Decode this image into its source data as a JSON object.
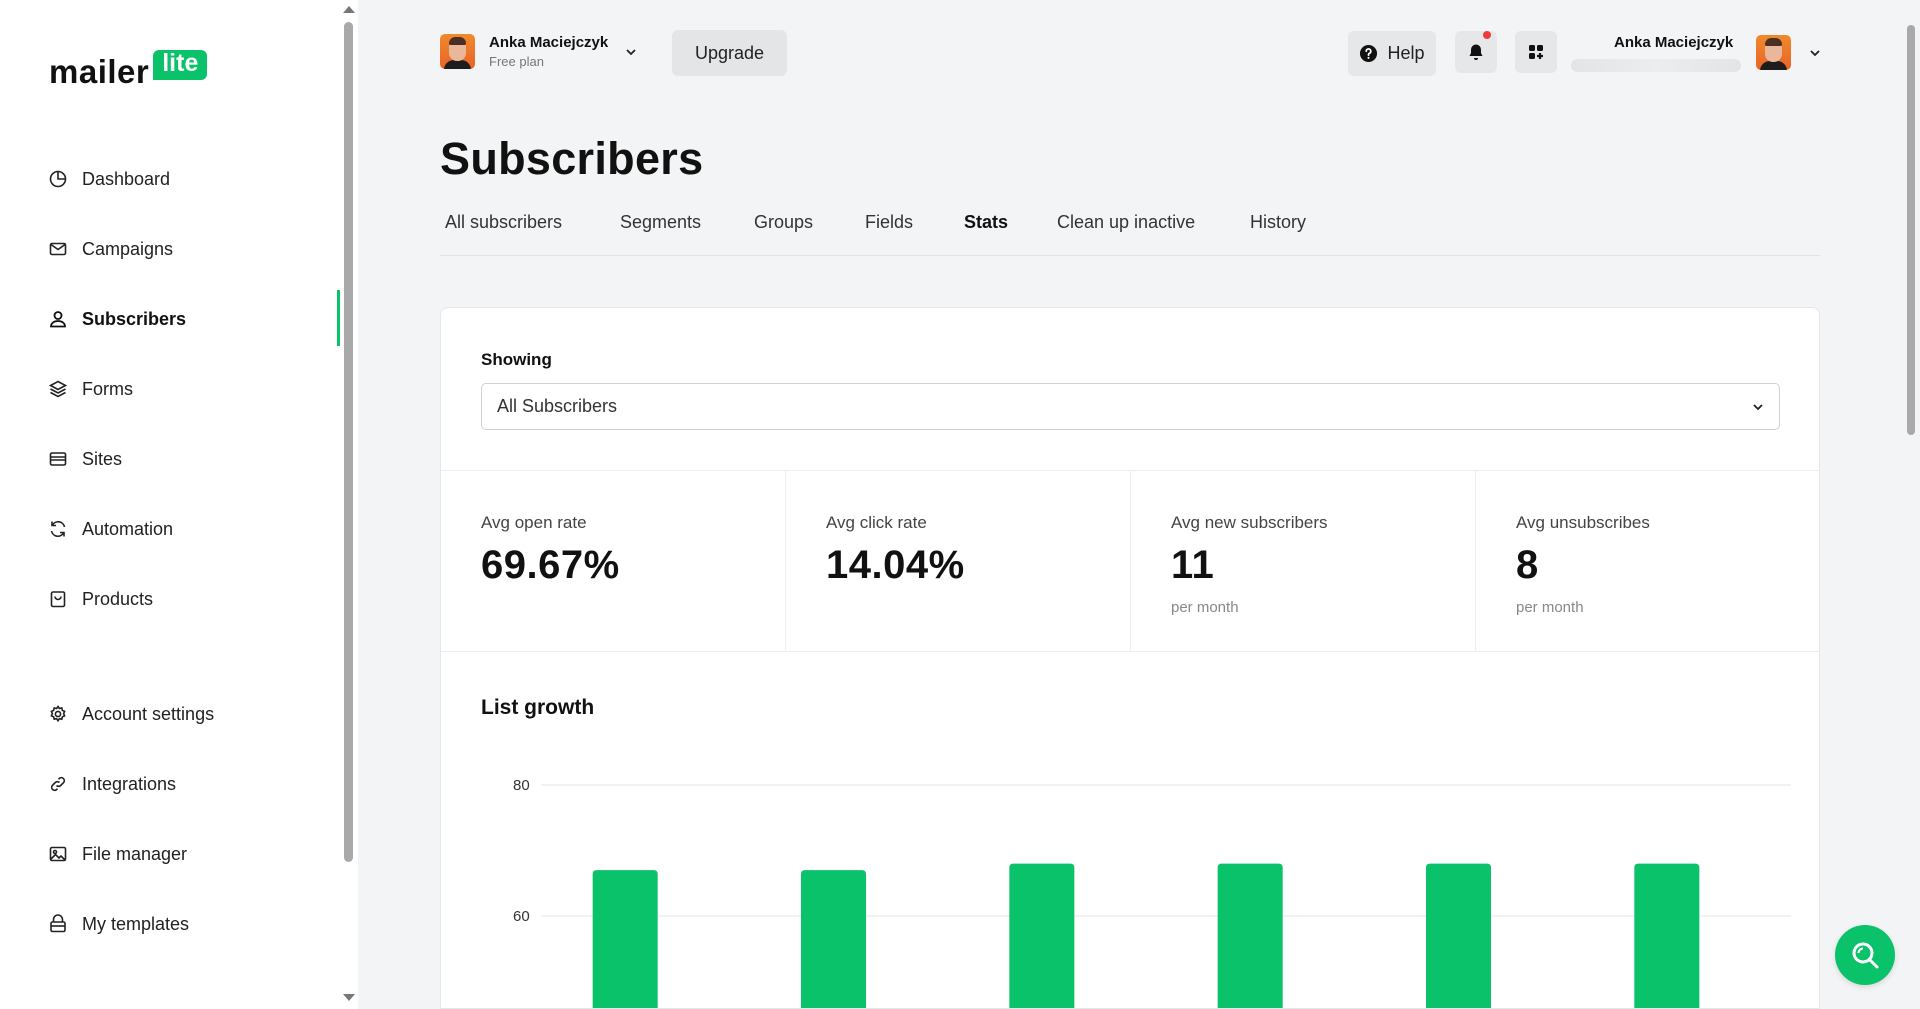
{
  "logo": {
    "word": "mailer",
    "badge": "lite"
  },
  "sidebar": {
    "items": [
      {
        "label": "Dashboard",
        "icon": "dashboard-icon"
      },
      {
        "label": "Campaigns",
        "icon": "mail-icon"
      },
      {
        "label": "Subscribers",
        "icon": "user-icon",
        "active": true
      },
      {
        "label": "Forms",
        "icon": "layers-icon"
      },
      {
        "label": "Sites",
        "icon": "browser-icon"
      },
      {
        "label": "Automation",
        "icon": "refresh-icon"
      },
      {
        "label": "Products",
        "icon": "shopping-bag-icon"
      },
      {
        "label": "Account settings",
        "icon": "gear-icon"
      },
      {
        "label": "Integrations",
        "icon": "link-icon"
      },
      {
        "label": "File manager",
        "icon": "image-icon"
      },
      {
        "label": "My templates",
        "icon": "template-icon"
      }
    ]
  },
  "header": {
    "account_name": "Anka Maciejczyk",
    "plan": "Free plan",
    "upgrade_label": "Upgrade",
    "help_label": "Help",
    "user_name": "Anka Maciejczyk"
  },
  "page": {
    "title": "Subscribers",
    "tabs": [
      {
        "label": "All subscribers"
      },
      {
        "label": "Segments"
      },
      {
        "label": "Groups"
      },
      {
        "label": "Fields"
      },
      {
        "label": "Stats",
        "active": true
      },
      {
        "label": "Clean up inactive"
      },
      {
        "label": "History"
      }
    ]
  },
  "stats_card": {
    "showing_label": "Showing",
    "selected": "All Subscribers",
    "stats": [
      {
        "label": "Avg open rate",
        "value": "69.67%",
        "sub": ""
      },
      {
        "label": "Avg click rate",
        "value": "14.04%",
        "sub": ""
      },
      {
        "label": "Avg new subscribers",
        "value": "11",
        "sub": "per month"
      },
      {
        "label": "Avg unsubscribes",
        "value": "8",
        "sub": "per month"
      }
    ],
    "growth_title": "List growth"
  },
  "chart_data": {
    "type": "bar",
    "title": "List growth",
    "y_ticks": [
      "80",
      "60"
    ],
    "values": [
      67,
      67,
      68,
      68,
      68,
      68
    ],
    "ylim": [
      40,
      80
    ],
    "color": "#09c269",
    "grid": true
  },
  "colors": {
    "brand": "#09c269",
    "notification": "#ef3b3b"
  }
}
